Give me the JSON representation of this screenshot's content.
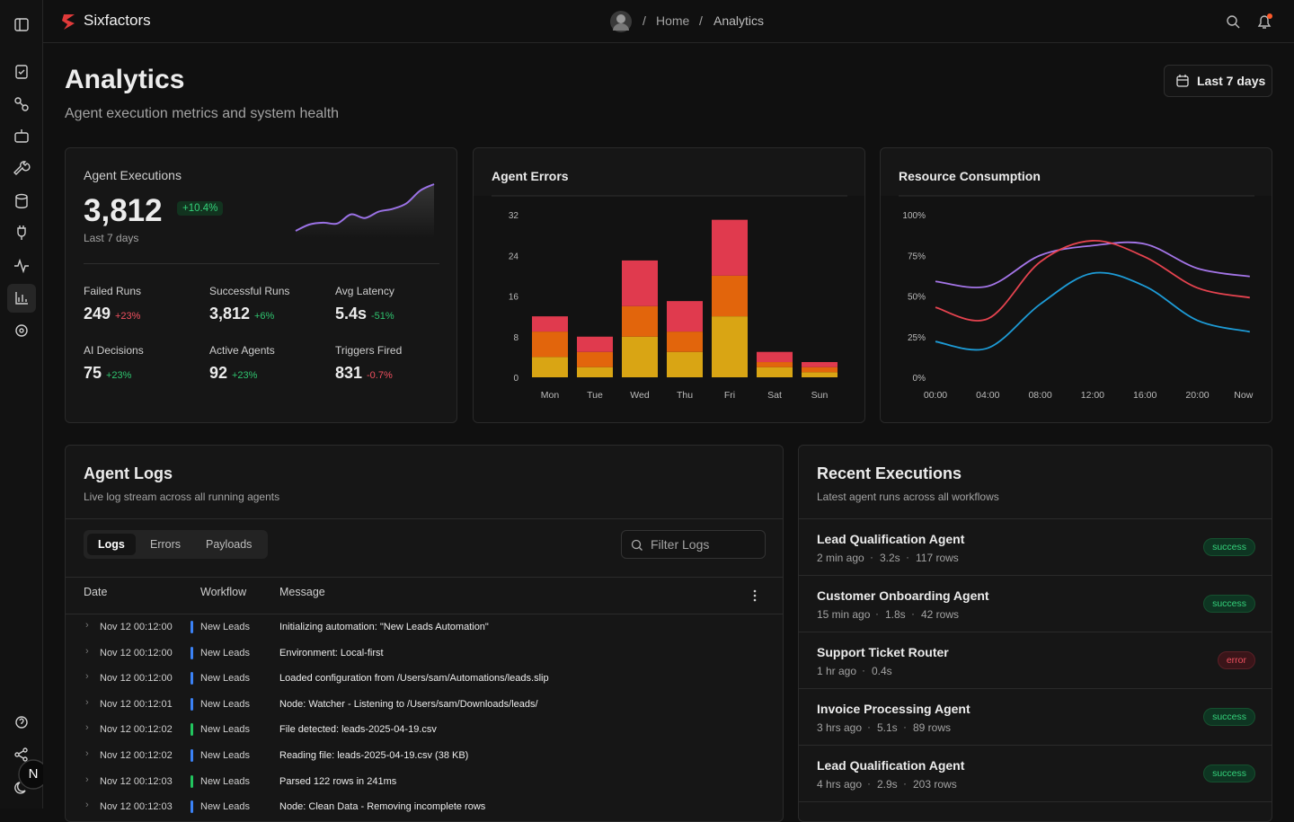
{
  "header": {
    "brand": "Sixfactors",
    "breadcrumb": [
      "Home",
      "Analytics"
    ],
    "user_initial": "N"
  },
  "page": {
    "title": "Analytics",
    "subtitle": "Agent execution metrics and system health",
    "range_button": "Last 7 days"
  },
  "executions_card": {
    "title": "Agent Executions",
    "value": "3,812",
    "change": "+10.4%",
    "period": "Last 7 days",
    "metrics": [
      {
        "label": "Failed Runs",
        "value": "249",
        "change": "+23%",
        "change_color": "#f0505f"
      },
      {
        "label": "Successful Runs",
        "value": "3,812",
        "change": "+6%",
        "change_color": "#2fc46f"
      },
      {
        "label": "Avg Latency",
        "value": "5.4s",
        "change": "-51%",
        "change_color": "#2fc46f"
      },
      {
        "label": "AI Decisions",
        "value": "75",
        "change": "+23%",
        "change_color": "#2fc46f"
      },
      {
        "label": "Active Agents",
        "value": "92",
        "change": "+23%",
        "change_color": "#2fc46f"
      },
      {
        "label": "Triggers Fired",
        "value": "831",
        "change": "-0.7%",
        "change_color": "#f0505f"
      }
    ]
  },
  "chart_data": [
    {
      "type": "area",
      "color": "#9b72e6",
      "values": [
        8,
        15,
        17,
        16,
        26,
        22,
        29,
        32,
        38,
        52,
        59
      ]
    },
    {
      "type": "bar",
      "title": "Agent Errors",
      "stacked": true,
      "categories": [
        "Mon",
        "Tue",
        "Wed",
        "Thu",
        "Fri",
        "Sat",
        "Sun"
      ],
      "ylim": [
        0,
        32
      ],
      "yticks": [
        0,
        8,
        16,
        24,
        32
      ],
      "series": [
        {
          "color": "#d9a514",
          "values": [
            4,
            2,
            8,
            5,
            12,
            2,
            1
          ]
        },
        {
          "color": "#e2650c",
          "values": [
            5,
            3,
            6,
            4,
            8,
            1,
            1
          ]
        },
        {
          "color": "#e03a4e",
          "values": [
            3,
            3,
            9,
            6,
            11,
            2,
            1
          ]
        }
      ]
    },
    {
      "type": "line",
      "title": "Resource Consumption",
      "categories": [
        "00:00",
        "04:00",
        "08:00",
        "12:00",
        "16:00",
        "20:00",
        "Now"
      ],
      "ylim": [
        0,
        100
      ],
      "yticks": [
        {
          "value": 0,
          "label": "0%"
        },
        {
          "value": 25,
          "label": "25%"
        },
        {
          "value": 50,
          "label": "50%"
        },
        {
          "value": 75,
          "label": "75%"
        },
        {
          "value": 100,
          "label": "100%"
        }
      ],
      "series": [
        {
          "color": "#a475e8",
          "values": [
            59,
            56,
            75,
            81,
            82,
            67,
            62
          ]
        },
        {
          "color": "#e5434f",
          "values": [
            43,
            36,
            71,
            84,
            74,
            55,
            49
          ]
        },
        {
          "color": "#1d9bd6",
          "values": [
            22,
            18,
            45,
            64,
            56,
            35,
            28
          ]
        }
      ]
    }
  ],
  "logs": {
    "title": "Agent Logs",
    "subtitle": "Live log stream across all running agents",
    "tabs": [
      "Logs",
      "Errors",
      "Payloads"
    ],
    "search_placeholder": "Filter Logs",
    "columns": [
      "Date",
      "Workflow",
      "Message"
    ],
    "rows": [
      {
        "date": "Nov 12 00:12:00",
        "workflow": "New Leads",
        "color": "#3b82f6",
        "message": "Initializing automation: \"New Leads Automation\""
      },
      {
        "date": "Nov 12 00:12:00",
        "workflow": "New Leads",
        "color": "#3b82f6",
        "message": "Environment: Local-first"
      },
      {
        "date": "Nov 12 00:12:00",
        "workflow": "New Leads",
        "color": "#3b82f6",
        "message": "Loaded configuration from /Users/sam/Automations/leads.slip"
      },
      {
        "date": "Nov 12 00:12:01",
        "workflow": "New Leads",
        "color": "#3b82f6",
        "message": "Node: Watcher - Listening to /Users/sam/Downloads/leads/"
      },
      {
        "date": "Nov 12 00:12:02",
        "workflow": "New Leads",
        "color": "#22c55e",
        "message": "File detected: leads-2025-04-19.csv"
      },
      {
        "date": "Nov 12 00:12:02",
        "workflow": "New Leads",
        "color": "#3b82f6",
        "message": "Reading file: leads-2025-04-19.csv (38 KB)"
      },
      {
        "date": "Nov 12 00:12:03",
        "workflow": "New Leads",
        "color": "#22c55e",
        "message": "Parsed 122 rows in 241ms"
      },
      {
        "date": "Nov 12 00:12:03",
        "workflow": "New Leads",
        "color": "#3b82f6",
        "message": "Node: Clean Data - Removing incomplete rows"
      }
    ]
  },
  "recent": {
    "title": "Recent Executions",
    "subtitle": "Latest agent runs across all workflows",
    "items": [
      {
        "name": "Lead Qualification Agent",
        "meta": [
          "2 min ago",
          "3.2s",
          "117 rows"
        ],
        "status": "success"
      },
      {
        "name": "Customer Onboarding Agent",
        "meta": [
          "15 min ago",
          "1.8s",
          "42 rows"
        ],
        "status": "success"
      },
      {
        "name": "Support Ticket Router",
        "meta": [
          "1 hr ago",
          "0.4s"
        ],
        "status": "error"
      },
      {
        "name": "Invoice Processing Agent",
        "meta": [
          "3 hrs ago",
          "5.1s",
          "89 rows"
        ],
        "status": "success"
      },
      {
        "name": "Lead Qualification Agent",
        "meta": [
          "4 hrs ago",
          "2.9s",
          "203 rows"
        ],
        "status": "success"
      }
    ]
  }
}
